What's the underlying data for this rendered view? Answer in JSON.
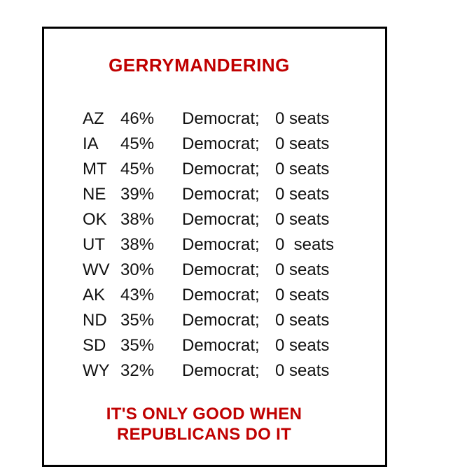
{
  "poster": {
    "title": "GERRYMANDERING",
    "rows": [
      {
        "state": "AZ",
        "pct": "46%",
        "party": "Democrat;",
        "seats": "0 seats"
      },
      {
        "state": "IA",
        "pct": "45%",
        "party": "Democrat;",
        "seats": "0 seats"
      },
      {
        "state": "MT",
        "pct": "45%",
        "party": "Democrat;",
        "seats": "0 seats"
      },
      {
        "state": "NE",
        "pct": "39%",
        "party": "Democrat;",
        "seats": "0 seats"
      },
      {
        "state": "OK",
        "pct": "38%",
        "party": "Democrat;",
        "seats": "0 seats"
      },
      {
        "state": "UT",
        "pct": "38%",
        "party": "Democrat;",
        "seats": "0  seats"
      },
      {
        "state": "WV",
        "pct": "30%",
        "party": "Democrat;",
        "seats": "0 seats"
      },
      {
        "state": "AK",
        "pct": "43%",
        "party": "Democrat;",
        "seats": "0 seats"
      },
      {
        "state": "ND",
        "pct": "35%",
        "party": "Democrat;",
        "seats": "0 seats"
      },
      {
        "state": "SD",
        "pct": "35%",
        "party": "Democrat;",
        "seats": "0 seats"
      },
      {
        "state": "WY",
        "pct": "32%",
        "party": "Democrat;",
        "seats": "0 seats"
      }
    ],
    "caption_line1": "IT'S ONLY GOOD WHEN",
    "caption_line2": "REPUBLICANS DO IT",
    "colors": {
      "accent_red": "#C00000",
      "text": "#111111",
      "border": "#000000",
      "background": "#FFFFFF"
    }
  }
}
